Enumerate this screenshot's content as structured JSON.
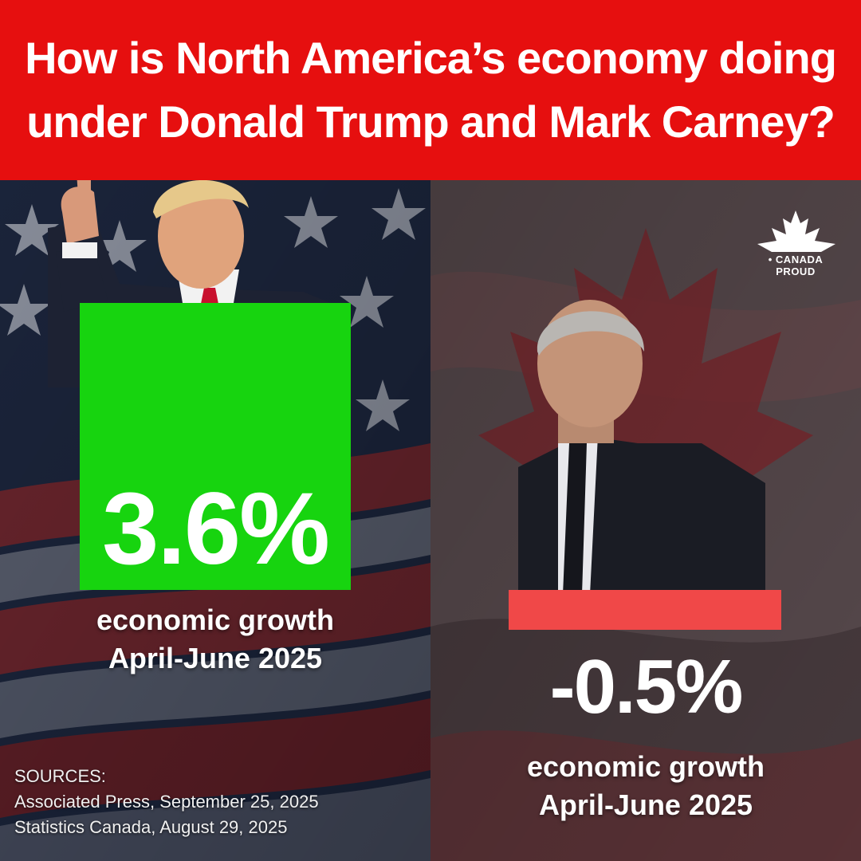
{
  "header": {
    "title_line1": "How is North America’s economy doing",
    "title_line2": "under Donald Trump and Mark Carney?"
  },
  "logo": {
    "text": "• CANADA PROUD",
    "icon": "maple-leaf-icon"
  },
  "colors": {
    "header_bg": "#e60f0f",
    "positive_bar": "#17d40f",
    "negative_bar": "#f04848",
    "text": "#ffffff"
  },
  "chart_data": {
    "type": "bar",
    "categories": [
      "Donald Trump",
      "Mark Carney"
    ],
    "values": [
      3.6,
      -0.5
    ],
    "value_labels": [
      "3.6%",
      "-0.5%"
    ],
    "captions": [
      {
        "line1": "economic growth",
        "line2": "April-June 2025"
      },
      {
        "line1": "economic growth",
        "line2": "April-June 2025"
      }
    ]
  },
  "sources": {
    "heading": "SOURCES:",
    "items": [
      "Associated Press, September 25, 2025",
      "Statistics Canada, August 29, 2025"
    ]
  }
}
